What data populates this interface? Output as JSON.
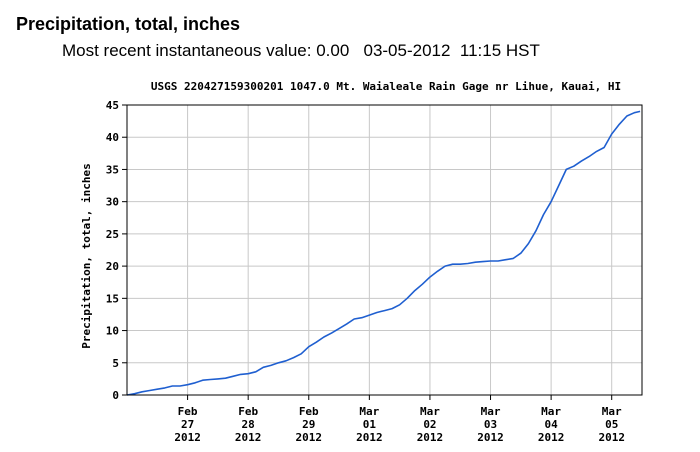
{
  "header": {
    "title": "Precipitation, total, inches",
    "recent_label": "Most recent instantaneous value:",
    "recent_value": "0.00",
    "recent_date": "03-05-2012",
    "recent_time": "11:15 HST"
  },
  "chart_data": {
    "type": "line",
    "title": "USGS 220427159300201 1047.0 Mt. Waialeale Rain Gage nr Lihue, Kauai, HI",
    "ylabel": "Precipitation, total, inches",
    "xlabel": "",
    "ylim": [
      0,
      45
    ],
    "yticks": [
      0,
      5,
      10,
      15,
      20,
      25,
      30,
      35,
      40,
      45
    ],
    "xlim": [
      "2012-02-26 00:00",
      "2012-03-05 12:00"
    ],
    "xticks": [
      {
        "at": "2012-02-27",
        "lines": [
          "Feb",
          "27",
          "2012"
        ]
      },
      {
        "at": "2012-02-28",
        "lines": [
          "Feb",
          "28",
          "2012"
        ]
      },
      {
        "at": "2012-02-29",
        "lines": [
          "Feb",
          "29",
          "2012"
        ]
      },
      {
        "at": "2012-03-01",
        "lines": [
          "Mar",
          "01",
          "2012"
        ]
      },
      {
        "at": "2012-03-02",
        "lines": [
          "Mar",
          "02",
          "2012"
        ]
      },
      {
        "at": "2012-03-03",
        "lines": [
          "Mar",
          "03",
          "2012"
        ]
      },
      {
        "at": "2012-03-04",
        "lines": [
          "Mar",
          "04",
          "2012"
        ]
      },
      {
        "at": "2012-03-05",
        "lines": [
          "Mar",
          "05",
          "2012"
        ]
      }
    ],
    "grid": true,
    "line_color": "#1f5fd0",
    "series": [
      {
        "values": [
          [
            "2012-02-26 00:00",
            0.0
          ],
          [
            "2012-02-26 03:00",
            0.2
          ],
          [
            "2012-02-26 06:00",
            0.5
          ],
          [
            "2012-02-26 09:00",
            0.7
          ],
          [
            "2012-02-26 12:00",
            0.9
          ],
          [
            "2012-02-26 15:00",
            1.1
          ],
          [
            "2012-02-26 18:00",
            1.4
          ],
          [
            "2012-02-26 21:00",
            1.4
          ],
          [
            "2012-02-27 00:00",
            1.6
          ],
          [
            "2012-02-27 03:00",
            1.9
          ],
          [
            "2012-02-27 06:00",
            2.3
          ],
          [
            "2012-02-27 09:00",
            2.4
          ],
          [
            "2012-02-27 12:00",
            2.5
          ],
          [
            "2012-02-27 15:00",
            2.6
          ],
          [
            "2012-02-27 18:00",
            2.9
          ],
          [
            "2012-02-27 21:00",
            3.2
          ],
          [
            "2012-02-28 00:00",
            3.3
          ],
          [
            "2012-02-28 03:00",
            3.6
          ],
          [
            "2012-02-28 06:00",
            4.3
          ],
          [
            "2012-02-28 09:00",
            4.6
          ],
          [
            "2012-02-28 12:00",
            5.0
          ],
          [
            "2012-02-28 15:00",
            5.3
          ],
          [
            "2012-02-28 18:00",
            5.8
          ],
          [
            "2012-02-28 21:00",
            6.4
          ],
          [
            "2012-02-29 00:00",
            7.5
          ],
          [
            "2012-02-29 03:00",
            8.2
          ],
          [
            "2012-02-29 06:00",
            9.0
          ],
          [
            "2012-02-29 09:00",
            9.6
          ],
          [
            "2012-02-29 12:00",
            10.3
          ],
          [
            "2012-02-29 15:00",
            11.0
          ],
          [
            "2012-02-29 18:00",
            11.8
          ],
          [
            "2012-02-29 21:00",
            12.0
          ],
          [
            "2012-03-01 00:00",
            12.4
          ],
          [
            "2012-03-01 03:00",
            12.8
          ],
          [
            "2012-03-01 06:00",
            13.1
          ],
          [
            "2012-03-01 09:00",
            13.4
          ],
          [
            "2012-03-01 12:00",
            14.0
          ],
          [
            "2012-03-01 15:00",
            15.0
          ],
          [
            "2012-03-01 18:00",
            16.2
          ],
          [
            "2012-03-01 21:00",
            17.2
          ],
          [
            "2012-03-02 00:00",
            18.3
          ],
          [
            "2012-03-02 03:00",
            19.2
          ],
          [
            "2012-03-02 06:00",
            20.0
          ],
          [
            "2012-03-02 09:00",
            20.3
          ],
          [
            "2012-03-02 12:00",
            20.3
          ],
          [
            "2012-03-02 15:00",
            20.4
          ],
          [
            "2012-03-02 18:00",
            20.6
          ],
          [
            "2012-03-02 21:00",
            20.7
          ],
          [
            "2012-03-03 00:00",
            20.8
          ],
          [
            "2012-03-03 03:00",
            20.8
          ],
          [
            "2012-03-03 06:00",
            21.0
          ],
          [
            "2012-03-03 09:00",
            21.2
          ],
          [
            "2012-03-03 12:00",
            22.0
          ],
          [
            "2012-03-03 15:00",
            23.5
          ],
          [
            "2012-03-03 18:00",
            25.5
          ],
          [
            "2012-03-03 21:00",
            28.0
          ],
          [
            "2012-03-04 00:00",
            30.0
          ],
          [
            "2012-03-04 03:00",
            32.5
          ],
          [
            "2012-03-04 06:00",
            35.0
          ],
          [
            "2012-03-04 09:00",
            35.5
          ],
          [
            "2012-03-04 12:00",
            36.3
          ],
          [
            "2012-03-04 15:00",
            37.0
          ],
          [
            "2012-03-04 18:00",
            37.8
          ],
          [
            "2012-03-04 21:00",
            38.4
          ],
          [
            "2012-03-05 00:00",
            40.5
          ],
          [
            "2012-03-05 03:00",
            42.0
          ],
          [
            "2012-03-05 06:00",
            43.3
          ],
          [
            "2012-03-05 09:00",
            43.8
          ],
          [
            "2012-03-05 11:15",
            44.0
          ]
        ]
      }
    ]
  }
}
